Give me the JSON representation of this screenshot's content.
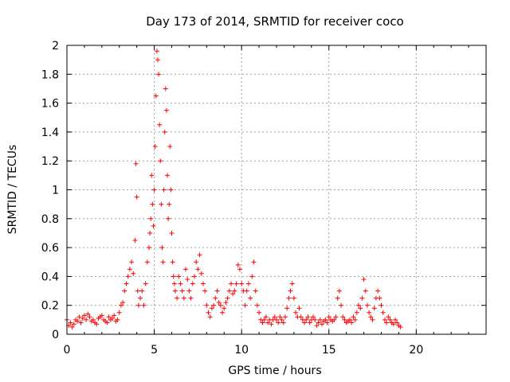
{
  "chart_data": {
    "type": "scatter",
    "title": "Day 173 of 2014, SRMTID for receiver coco",
    "xlabel": "GPS time / hours",
    "ylabel": "SRMTID / TECUs",
    "xlim": [
      0,
      24
    ],
    "ylim": [
      0,
      2
    ],
    "grid": true,
    "marker": "+",
    "marker_color": "#ff0000",
    "x_ticks": [
      0,
      5,
      10,
      15,
      20
    ],
    "x_tick_labels": [
      "0",
      "5",
      "10",
      "15",
      "20"
    ],
    "y_ticks": [
      0,
      0.2,
      0.4,
      0.6,
      0.8,
      1,
      1.2,
      1.4,
      1.6,
      1.8,
      2
    ],
    "y_tick_labels": [
      "0",
      "0.2",
      "0.4",
      "0.6",
      "0.8",
      "1",
      "1.2",
      "1.4",
      "1.6",
      "1.8",
      "2"
    ],
    "series": [
      {
        "name": "SRMTID",
        "x": [
          0.0,
          0.1,
          0.2,
          0.3,
          0.4,
          0.5,
          0.6,
          0.7,
          0.8,
          0.9,
          1.0,
          1.1,
          1.2,
          1.3,
          1.4,
          1.5,
          1.6,
          1.7,
          1.8,
          1.9,
          2.0,
          2.1,
          2.2,
          2.3,
          2.4,
          2.5,
          2.6,
          2.7,
          2.8,
          2.9,
          3.0,
          3.1,
          3.2,
          3.3,
          3.4,
          3.5,
          3.6,
          3.7,
          3.8,
          3.9,
          3.95,
          4.0,
          4.05,
          4.1,
          4.2,
          4.3,
          4.4,
          4.5,
          4.6,
          4.7,
          4.75,
          4.8,
          4.85,
          4.9,
          4.95,
          5.0,
          5.05,
          5.1,
          5.15,
          5.2,
          5.25,
          5.3,
          5.35,
          5.4,
          5.45,
          5.5,
          5.55,
          5.6,
          5.65,
          5.7,
          5.75,
          5.8,
          5.85,
          5.9,
          5.95,
          6.0,
          6.05,
          6.1,
          6.15,
          6.2,
          6.3,
          6.4,
          6.5,
          6.6,
          6.7,
          6.8,
          6.9,
          7.0,
          7.1,
          7.2,
          7.3,
          7.4,
          7.5,
          7.6,
          7.7,
          7.8,
          7.9,
          8.0,
          8.1,
          8.2,
          8.3,
          8.4,
          8.5,
          8.6,
          8.7,
          8.8,
          8.9,
          9.0,
          9.1,
          9.2,
          9.3,
          9.4,
          9.5,
          9.6,
          9.7,
          9.8,
          9.9,
          10.0,
          10.1,
          10.2,
          10.3,
          10.4,
          10.5,
          10.6,
          10.7,
          10.8,
          10.9,
          11.0,
          11.1,
          11.2,
          11.3,
          11.4,
          11.5,
          11.6,
          11.7,
          11.8,
          11.9,
          12.0,
          12.1,
          12.2,
          12.3,
          12.4,
          12.5,
          12.6,
          12.7,
          12.8,
          12.9,
          13.0,
          13.1,
          13.2,
          13.3,
          13.4,
          13.5,
          13.6,
          13.7,
          13.8,
          13.9,
          14.0,
          14.1,
          14.2,
          14.3,
          14.4,
          14.5,
          14.6,
          14.7,
          14.8,
          14.9,
          15.0,
          15.1,
          15.2,
          15.3,
          15.4,
          15.5,
          15.6,
          15.7,
          15.8,
          15.9,
          16.0,
          16.1,
          16.2,
          16.3,
          16.4,
          16.5,
          16.6,
          16.7,
          16.8,
          16.9,
          17.0,
          17.1,
          17.2,
          17.3,
          17.4,
          17.5,
          17.6,
          17.7,
          17.8,
          17.9,
          18.0,
          18.1,
          18.2,
          18.3,
          18.4,
          18.5,
          18.6,
          18.7,
          18.8,
          18.9,
          19.0,
          19.1
        ],
        "y": [
          0.1,
          0.06,
          0.08,
          0.05,
          0.07,
          0.1,
          0.09,
          0.12,
          0.08,
          0.11,
          0.13,
          0.1,
          0.14,
          0.12,
          0.09,
          0.1,
          0.08,
          0.07,
          0.11,
          0.12,
          0.13,
          0.1,
          0.09,
          0.08,
          0.12,
          0.1,
          0.11,
          0.13,
          0.09,
          0.1,
          0.15,
          0.2,
          0.22,
          0.3,
          0.35,
          0.4,
          0.45,
          0.5,
          0.42,
          0.65,
          1.18,
          0.95,
          0.3,
          0.2,
          0.25,
          0.3,
          0.2,
          0.35,
          0.5,
          0.6,
          0.7,
          0.8,
          1.1,
          0.9,
          0.75,
          1.0,
          1.3,
          1.65,
          1.96,
          1.9,
          1.8,
          1.45,
          1.2,
          0.9,
          0.6,
          0.5,
          1.0,
          1.4,
          1.7,
          1.55,
          1.1,
          0.8,
          0.9,
          1.3,
          1.0,
          0.7,
          0.5,
          0.4,
          0.35,
          0.3,
          0.25,
          0.4,
          0.35,
          0.3,
          0.25,
          0.45,
          0.38,
          0.3,
          0.25,
          0.35,
          0.4,
          0.5,
          0.45,
          0.55,
          0.42,
          0.35,
          0.3,
          0.2,
          0.15,
          0.12,
          0.18,
          0.2,
          0.25,
          0.3,
          0.22,
          0.2,
          0.15,
          0.18,
          0.22,
          0.25,
          0.3,
          0.35,
          0.28,
          0.3,
          0.35,
          0.48,
          0.45,
          0.35,
          0.3,
          0.2,
          0.3,
          0.35,
          0.25,
          0.4,
          0.5,
          0.3,
          0.2,
          0.15,
          0.1,
          0.08,
          0.1,
          0.12,
          0.08,
          0.1,
          0.07,
          0.1,
          0.12,
          0.1,
          0.08,
          0.12,
          0.1,
          0.08,
          0.12,
          0.18,
          0.25,
          0.3,
          0.35,
          0.25,
          0.15,
          0.12,
          0.18,
          0.12,
          0.1,
          0.08,
          0.1,
          0.12,
          0.08,
          0.1,
          0.12,
          0.1,
          0.06,
          0.08,
          0.1,
          0.07,
          0.09,
          0.1,
          0.08,
          0.12,
          0.1,
          0.09,
          0.1,
          0.12,
          0.25,
          0.3,
          0.2,
          0.12,
          0.1,
          0.08,
          0.09,
          0.1,
          0.08,
          0.12,
          0.1,
          0.15,
          0.2,
          0.18,
          0.25,
          0.38,
          0.3,
          0.2,
          0.15,
          0.12,
          0.1,
          0.18,
          0.25,
          0.3,
          0.25,
          0.2,
          0.15,
          0.1,
          0.08,
          0.12,
          0.1,
          0.08,
          0.07,
          0.1,
          0.08,
          0.06,
          0.05
        ]
      }
    ]
  }
}
